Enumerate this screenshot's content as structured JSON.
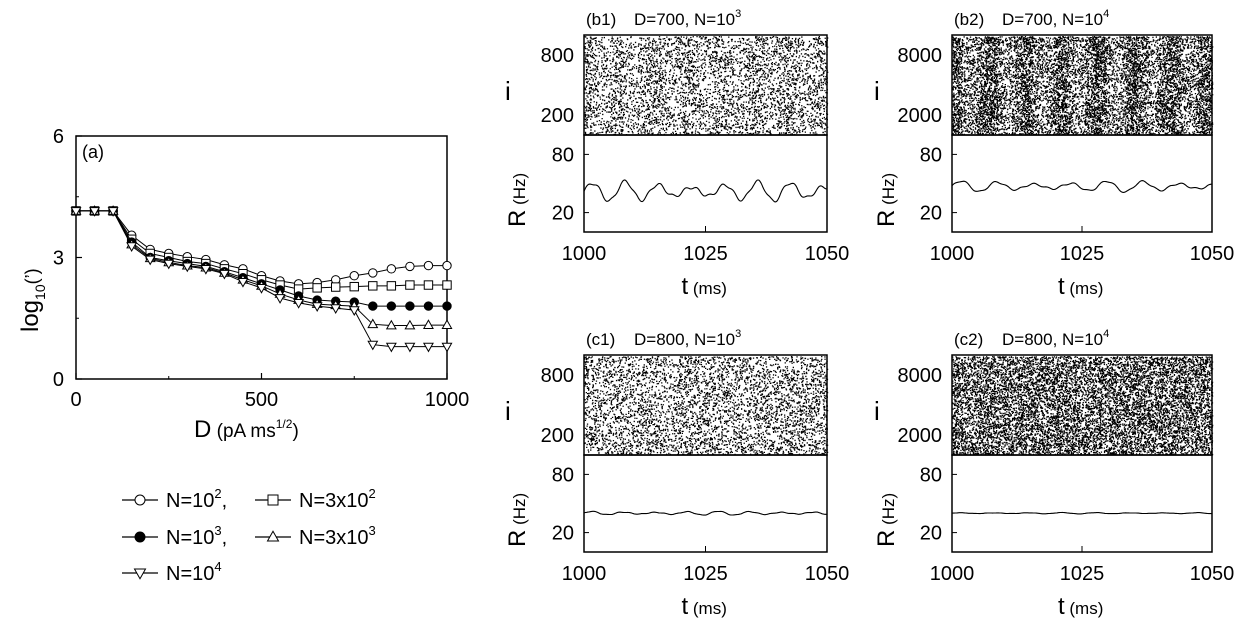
{
  "chart_data": [
    {
      "panel": "a",
      "type": "line",
      "panel_label": "(a)",
      "xlabel": "D",
      "xlabel_unit": "(pA ms",
      "xlabel_unit_sup": "1/2",
      "xlabel_unit_end": ")",
      "ylabel_base": "log",
      "ylabel_sub": "10",
      "ylabel_arg": "(’)",
      "xlim": [
        0,
        1000
      ],
      "ylim": [
        0,
        6
      ],
      "xticks": [
        "0",
        "500",
        "1000"
      ],
      "yticks": [
        "0",
        "3",
        "6"
      ],
      "x": [
        0,
        50,
        100,
        150,
        200,
        250,
        300,
        350,
        400,
        450,
        500,
        550,
        600,
        650,
        700,
        750,
        800,
        850,
        900,
        950,
        1000
      ],
      "series": [
        {
          "name": "N=10^2",
          "marker": "circle-open",
          "values": [
            4.15,
            4.15,
            4.15,
            3.55,
            3.2,
            3.1,
            3.02,
            2.95,
            2.82,
            2.72,
            2.55,
            2.42,
            2.35,
            2.38,
            2.45,
            2.55,
            2.62,
            2.72,
            2.78,
            2.8,
            2.8
          ]
        },
        {
          "name": "N=3x10^2",
          "marker": "square-open",
          "values": [
            4.15,
            4.15,
            4.15,
            3.45,
            3.1,
            3.0,
            2.9,
            2.85,
            2.72,
            2.6,
            2.45,
            2.32,
            2.22,
            2.25,
            2.27,
            2.28,
            2.3,
            2.3,
            2.32,
            2.32,
            2.32
          ]
        },
        {
          "name": "N=10^3",
          "marker": "circle-filled",
          "values": [
            4.15,
            4.15,
            4.15,
            3.38,
            3.0,
            2.92,
            2.85,
            2.78,
            2.65,
            2.5,
            2.35,
            2.2,
            2.05,
            1.95,
            1.92,
            1.9,
            1.8,
            1.8,
            1.8,
            1.8,
            1.8
          ]
        },
        {
          "name": "N=3x10^3",
          "marker": "triangle-up-open",
          "values": [
            4.15,
            4.15,
            4.15,
            3.32,
            2.98,
            2.88,
            2.8,
            2.75,
            2.62,
            2.45,
            2.3,
            2.1,
            1.95,
            1.85,
            1.82,
            1.8,
            1.35,
            1.32,
            1.32,
            1.33,
            1.33
          ]
        },
        {
          "name": "N=10^4",
          "marker": "triangle-down-open",
          "values": [
            4.15,
            4.15,
            4.15,
            3.28,
            2.95,
            2.85,
            2.78,
            2.72,
            2.6,
            2.4,
            2.25,
            2.0,
            1.88,
            1.8,
            1.75,
            1.7,
            0.85,
            0.8,
            0.8,
            0.8,
            0.8
          ]
        }
      ],
      "legend_placement": "below"
    },
    {
      "panel": "b1",
      "type": "raster+line",
      "panel_label": "(b1)",
      "title_prefix": "D=700, N=10",
      "title_exp": "3",
      "D": 700,
      "N": 1000,
      "raster_ylabel": "i",
      "raster_yticks": [
        "200",
        "800"
      ],
      "raster_ylim": [
        0,
        1000
      ],
      "raster_density": 0.35,
      "raster_period_ms": 7,
      "raster_modulation": 0.35,
      "rate_ylabel": "R",
      "rate_ylabel_unit": "(Hz)",
      "rate_yticks": [
        "20",
        "80"
      ],
      "rate_ylim": [
        0,
        100
      ],
      "rate_mean": 42,
      "rate_amp": 9,
      "rate_period_ms": 6.8,
      "xlabel": "t",
      "xlabel_unit": "(ms)",
      "xlim": [
        1000,
        1050
      ],
      "xticks": [
        "1000",
        "1025",
        "1050"
      ]
    },
    {
      "panel": "b2",
      "type": "raster+line",
      "panel_label": "(b2)",
      "title_prefix": "D=700, N=10",
      "title_exp": "4",
      "D": 700,
      "N": 10000,
      "raster_ylabel": "i",
      "raster_yticks": [
        "2000",
        "8000"
      ],
      "raster_ylim": [
        0,
        10000
      ],
      "raster_density": 1.0,
      "raster_period_ms": 7,
      "raster_modulation": 0.55,
      "rate_ylabel": "R",
      "rate_ylabel_unit": "(Hz)",
      "rate_yticks": [
        "20",
        "80"
      ],
      "rate_ylim": [
        0,
        100
      ],
      "rate_mean": 47,
      "rate_amp": 5,
      "rate_period_ms": 7,
      "xlabel": "t",
      "xlabel_unit": "(ms)",
      "xlim": [
        1000,
        1050
      ],
      "xticks": [
        "1000",
        "1025",
        "1050"
      ]
    },
    {
      "panel": "c1",
      "type": "raster+line",
      "panel_label": "(c1)",
      "title_prefix": "D=800, N=10",
      "title_exp": "3",
      "D": 800,
      "N": 1000,
      "raster_ylabel": "i",
      "raster_yticks": [
        "200",
        "800"
      ],
      "raster_ylim": [
        0,
        1000
      ],
      "raster_density": 0.35,
      "raster_period_ms": 7,
      "raster_modulation": 0.05,
      "rate_ylabel": "R",
      "rate_ylabel_unit": "(Hz)",
      "rate_yticks": [
        "20",
        "80"
      ],
      "rate_ylim": [
        0,
        100
      ],
      "rate_mean": 40,
      "rate_amp": 1.8,
      "rate_period_ms": 6.5,
      "xlabel": "t",
      "xlabel_unit": "(ms)",
      "xlim": [
        1000,
        1050
      ],
      "xticks": [
        "1000",
        "1025",
        "1050"
      ]
    },
    {
      "panel": "c2",
      "type": "raster+line",
      "panel_label": "(c2)",
      "title_prefix": "D=800, N=10",
      "title_exp": "4",
      "D": 800,
      "N": 10000,
      "raster_ylabel": "i",
      "raster_yticks": [
        "2000",
        "8000"
      ],
      "raster_ylim": [
        0,
        10000
      ],
      "raster_density": 1.0,
      "raster_period_ms": 7,
      "raster_modulation": 0.05,
      "rate_ylabel": "R",
      "rate_ylabel_unit": "(Hz)",
      "rate_yticks": [
        "20",
        "80"
      ],
      "rate_ylim": [
        0,
        100
      ],
      "rate_mean": 40,
      "rate_amp": 0.6,
      "rate_period_ms": 6.5,
      "xlabel": "t",
      "xlabel_unit": "(ms)",
      "xlim": [
        1000,
        1050
      ],
      "xticks": [
        "1000",
        "1025",
        "1050"
      ]
    }
  ],
  "legend": {
    "rows": [
      [
        {
          "marker": "circle-open",
          "base": "N=10",
          "sup": "2",
          "tail": ","
        },
        {
          "marker": "square-open",
          "base": "N=3x10",
          "sup": "2",
          "tail": ""
        }
      ],
      [
        {
          "marker": "circle-filled",
          "base": "N=10",
          "sup": "3",
          "tail": ","
        },
        {
          "marker": "triangle-up-open",
          "base": "N=3x10",
          "sup": "3",
          "tail": ""
        }
      ],
      [
        {
          "marker": "triangle-down-open",
          "base": "N=10",
          "sup": "4",
          "tail": ""
        }
      ]
    ]
  }
}
